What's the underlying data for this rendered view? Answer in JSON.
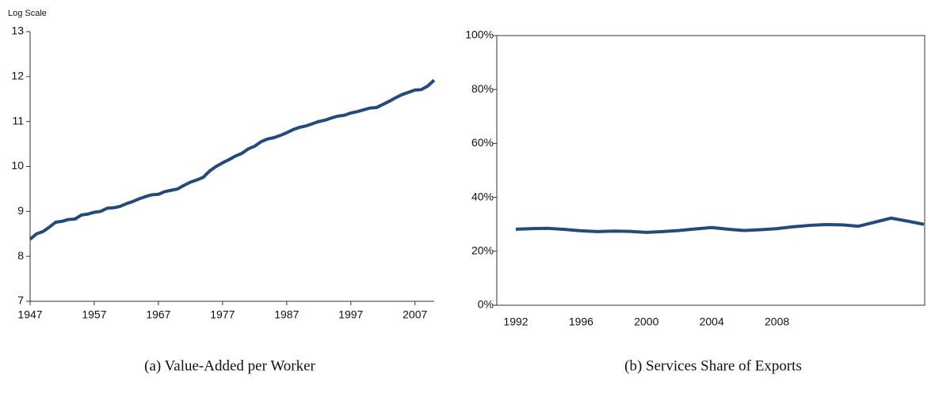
{
  "chart_data": [
    {
      "type": "line",
      "caption": "(a)  Value-Added per Worker",
      "y_label": "Log Scale",
      "x": [
        1947,
        1948,
        1949,
        1950,
        1951,
        1952,
        1953,
        1954,
        1955,
        1956,
        1957,
        1958,
        1959,
        1960,
        1961,
        1962,
        1963,
        1964,
        1965,
        1966,
        1967,
        1968,
        1969,
        1970,
        1971,
        1972,
        1973,
        1974,
        1975,
        1976,
        1977,
        1978,
        1979,
        1980,
        1981,
        1982,
        1983,
        1984,
        1985,
        1986,
        1987,
        1988,
        1989,
        1990,
        1991,
        1992,
        1993,
        1994,
        1995,
        1996,
        1997,
        1998,
        1999,
        2000,
        2001,
        2002,
        2003,
        2004,
        2005,
        2006,
        2007,
        2008,
        2009,
        2010
      ],
      "series": [
        {
          "color": "#234a7a",
          "values": [
            8.38,
            8.5,
            8.55,
            8.65,
            8.76,
            8.78,
            8.82,
            8.83,
            8.92,
            8.94,
            8.98,
            9.0,
            9.07,
            9.08,
            9.11,
            9.17,
            9.22,
            9.28,
            9.33,
            9.37,
            9.38,
            9.44,
            9.47,
            9.5,
            9.58,
            9.65,
            9.7,
            9.76,
            9.9,
            10.0,
            10.08,
            10.15,
            10.23,
            10.29,
            10.39,
            10.45,
            10.55,
            10.61,
            10.64,
            10.69,
            10.75,
            10.82,
            10.87,
            10.9,
            10.95,
            11.0,
            11.03,
            11.08,
            11.12,
            11.14,
            11.19,
            11.22,
            11.26,
            11.3,
            11.31,
            11.38,
            11.45,
            11.53,
            11.6,
            11.65,
            11.7,
            11.71,
            11.79,
            11.92
          ]
        }
      ],
      "xlim": [
        1947,
        2010
      ],
      "xticks": [
        1947,
        1957,
        1967,
        1977,
        1987,
        1997,
        2007
      ],
      "ylim": [
        7,
        13
      ],
      "yticks": [
        7,
        8,
        9,
        10,
        11,
        12,
        13
      ],
      "frame": false
    },
    {
      "type": "line",
      "caption": "(b)  Services Share of Exports",
      "categories": [
        "1992",
        null,
        null,
        null,
        "1996",
        null,
        null,
        null,
        "2000",
        null,
        null,
        null,
        "2004",
        null,
        null,
        null,
        "2008",
        null,
        null,
        null,
        null,
        null,
        null,
        null,
        null,
        null
      ],
      "series": [
        {
          "color": "#234a7a",
          "values": [
            28.2,
            28.4,
            28.5,
            28.1,
            27.6,
            27.3,
            27.5,
            27.4,
            27.0,
            27.3,
            27.7,
            28.3,
            28.8,
            28.2,
            27.7,
            28.0,
            28.4,
            29.1,
            29.6,
            29.9,
            29.8,
            29.3,
            30.8,
            32.3,
            31.2,
            30.0
          ]
        }
      ],
      "ylim": [
        0,
        100
      ],
      "yticks": [
        {
          "value": 0,
          "label": "0%"
        },
        {
          "value": 20,
          "label": "20%"
        },
        {
          "value": 40,
          "label": "40%"
        },
        {
          "value": 60,
          "label": "60%"
        },
        {
          "value": 80,
          "label": "80%"
        },
        {
          "value": 100,
          "label": "100%"
        }
      ],
      "frame": true
    }
  ]
}
